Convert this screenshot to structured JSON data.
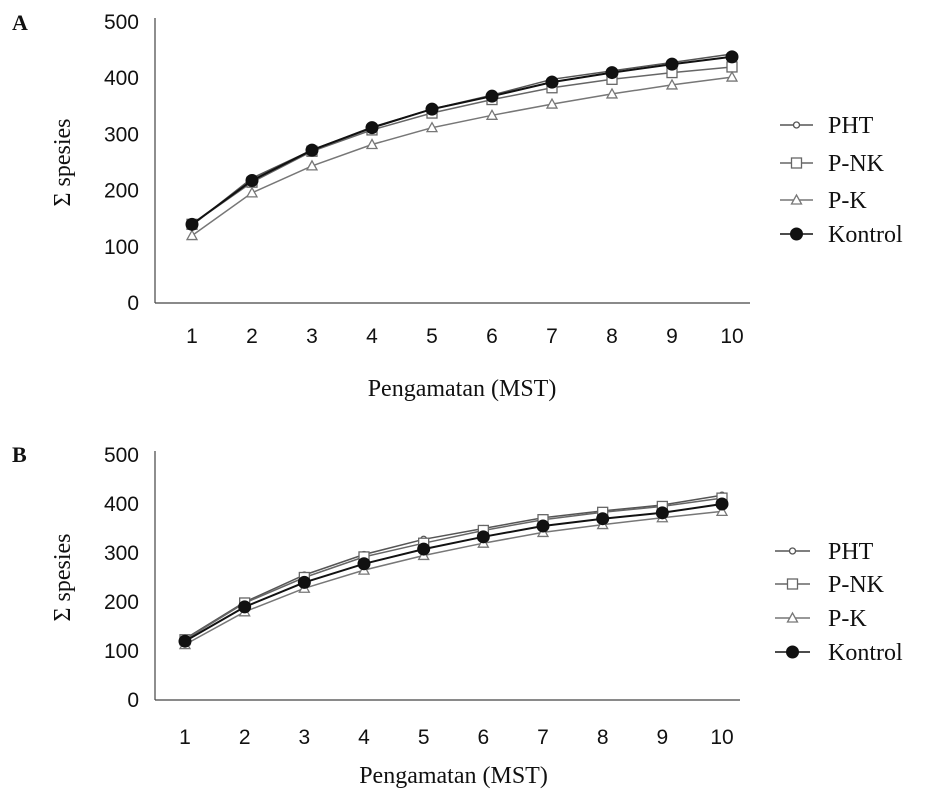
{
  "chart_data": [
    {
      "panel_label": "A",
      "type": "line",
      "xlabel": "Pengamatan (MST)",
      "ylabel": "Σ spesies",
      "categories": [
        "1",
        "2",
        "3",
        "4",
        "5",
        "6",
        "7",
        "8",
        "9",
        "10"
      ],
      "yticks": [
        "0",
        "100",
        "200",
        "300",
        "400",
        "500"
      ],
      "ylim": [
        0,
        500
      ],
      "grid": false,
      "legend": "right",
      "series": [
        {
          "name": "PHT",
          "marker": "small-circle",
          "color": "#555555",
          "values": [
            138,
            222,
            272,
            313,
            345,
            370,
            398,
            413,
            428,
            443
          ]
        },
        {
          "name": "P-NK",
          "marker": "open-square",
          "color": "#666666",
          "values": [
            140,
            215,
            270,
            308,
            338,
            362,
            383,
            398,
            410,
            420
          ]
        },
        {
          "name": "P-K",
          "marker": "open-triangle",
          "color": "#777777",
          "values": [
            120,
            196,
            244,
            282,
            312,
            334,
            354,
            372,
            388,
            402
          ]
        },
        {
          "name": "Kontrol",
          "marker": "filled-circle",
          "color": "#111111",
          "values": [
            140,
            218,
            272,
            312,
            345,
            368,
            393,
            410,
            425,
            438
          ]
        }
      ]
    },
    {
      "panel_label": "B",
      "type": "line",
      "xlabel": "Pengamatan (MST)",
      "ylabel": "Σ spesies",
      "categories": [
        "1",
        "2",
        "3",
        "4",
        "5",
        "6",
        "7",
        "8",
        "9",
        "10"
      ],
      "yticks": [
        "0",
        "100",
        "200",
        "300",
        "400",
        "500"
      ],
      "ylim": [
        0,
        500
      ],
      "grid": false,
      "legend": "right",
      "series": [
        {
          "name": "PHT",
          "marker": "small-circle",
          "color": "#555555",
          "values": [
            125,
            200,
            255,
            297,
            328,
            350,
            372,
            386,
            398,
            418
          ]
        },
        {
          "name": "P-NK",
          "marker": "open-square",
          "color": "#666666",
          "values": [
            123,
            198,
            250,
            292,
            320,
            346,
            368,
            383,
            395,
            412
          ]
        },
        {
          "name": "P-K",
          "marker": "open-triangle",
          "color": "#777777",
          "values": [
            113,
            180,
            228,
            265,
            295,
            320,
            342,
            358,
            372,
            385
          ]
        },
        {
          "name": "Kontrol",
          "marker": "filled-circle",
          "color": "#111111",
          "values": [
            120,
            190,
            240,
            278,
            308,
            333,
            355,
            370,
            382,
            400
          ]
        }
      ]
    }
  ]
}
